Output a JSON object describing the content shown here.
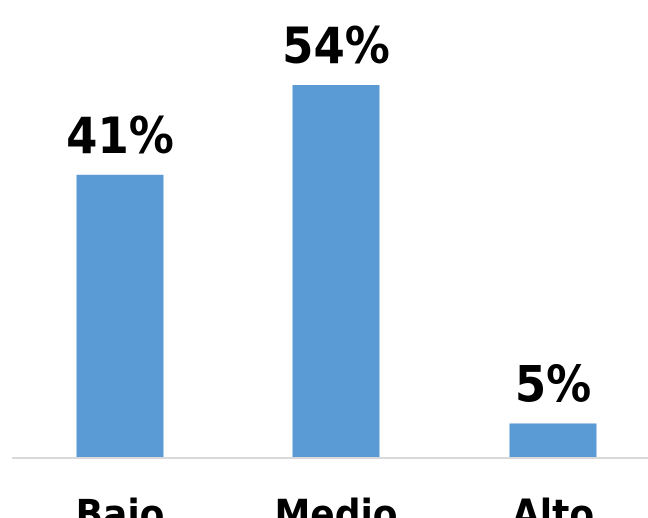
{
  "chart_data": {
    "type": "bar",
    "categories": [
      "Bajo",
      "Medio",
      "Alto"
    ],
    "values": [
      41,
      54,
      5
    ],
    "value_labels": [
      "41%",
      "54%",
      "5%"
    ],
    "unit": "%",
    "ylim": [
      0,
      54
    ],
    "bar_color": "#5B9BD5",
    "axis_color": "#D9D9D9",
    "grid": false,
    "legend": "none"
  }
}
